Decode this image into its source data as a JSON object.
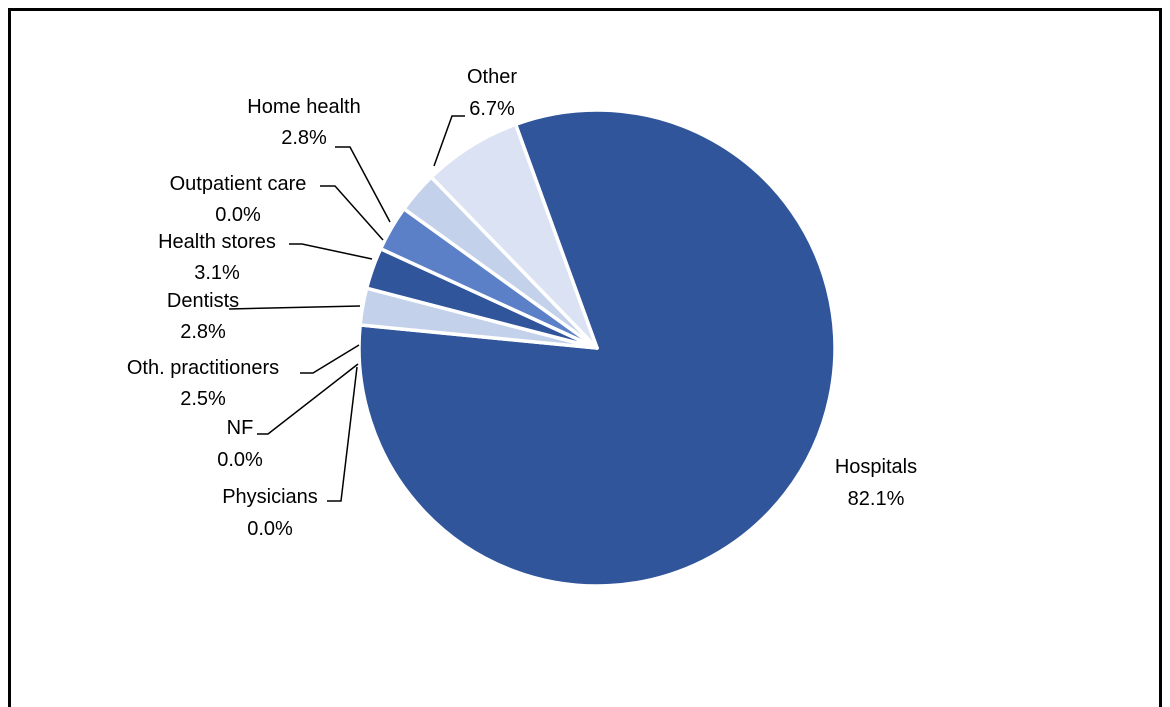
{
  "chart_data": {
    "type": "pie",
    "title": "",
    "start_angle_deg": 340,
    "direction": "clockwise",
    "slices": [
      {
        "name": "Hospitals",
        "value": 82.1,
        "value_label": "82.1%",
        "color": "#30559B"
      },
      {
        "name": "Physicians",
        "value": 0.0,
        "value_label": "0.0%",
        "color": "#30559B"
      },
      {
        "name": "NF",
        "value": 0.0,
        "value_label": "0.0%",
        "color": "#5B80C8"
      },
      {
        "name": "Oth. practitioners",
        "value": 2.5,
        "value_label": "2.5%",
        "color": "#C3D1EB"
      },
      {
        "name": "Dentists",
        "value": 2.8,
        "value_label": "2.8%",
        "color": "#30559B"
      },
      {
        "name": "Health stores",
        "value": 3.1,
        "value_label": "3.1%",
        "color": "#5B80C8"
      },
      {
        "name": "Outpatient care",
        "value": 0.0,
        "value_label": "0.0%",
        "color": "#C3D1EB"
      },
      {
        "name": "Home health",
        "value": 2.8,
        "value_label": "2.8%",
        "color": "#C3D1EB"
      },
      {
        "name": "Other",
        "value": 6.7,
        "value_label": "6.7%",
        "color": "#DAE2F3"
      }
    ]
  }
}
